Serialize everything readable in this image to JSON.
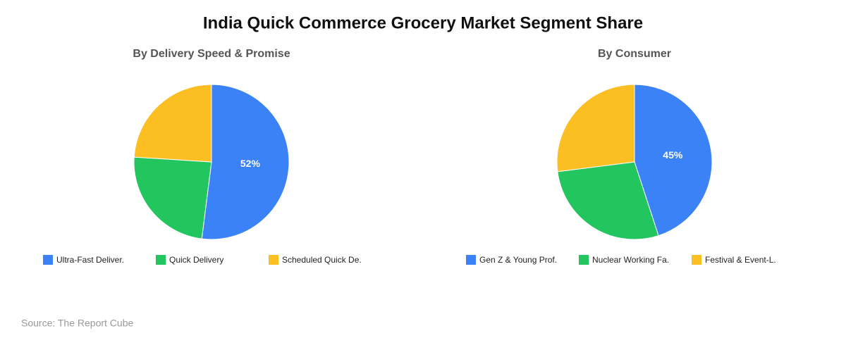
{
  "title": "India Quick Commerce Grocery Market Segment Share",
  "source": "Source: The Report Cube",
  "chart_data": [
    {
      "type": "pie",
      "title": "By Delivery Speed & Promise",
      "categories": [
        "Ultra-Fast Deliver.",
        "Quick Delivery",
        "Scheduled Quick De."
      ],
      "values": [
        52,
        24,
        24
      ],
      "value_labels": [
        "52%",
        null,
        null
      ],
      "colors": [
        "#3b82f6",
        "#22c55e",
        "#fbbf24"
      ]
    },
    {
      "type": "pie",
      "title": "By Consumer",
      "categories": [
        "Gen Z & Young Prof.",
        "Nuclear Working Fa.",
        "Festival & Event-L."
      ],
      "values": [
        45,
        28,
        27
      ],
      "value_labels": [
        "45%",
        null,
        null
      ],
      "colors": [
        "#3b82f6",
        "#22c55e",
        "#fbbf24"
      ]
    }
  ]
}
